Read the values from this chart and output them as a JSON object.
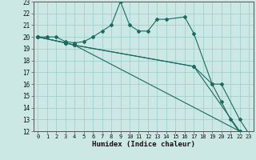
{
  "xlabel": "Humidex (Indice chaleur)",
  "xlim": [
    -0.5,
    23.5
  ],
  "ylim": [
    12,
    23
  ],
  "xticks": [
    0,
    1,
    2,
    3,
    4,
    5,
    6,
    7,
    8,
    9,
    10,
    11,
    12,
    13,
    14,
    15,
    16,
    17,
    18,
    19,
    20,
    21,
    22,
    23
  ],
  "yticks": [
    12,
    13,
    14,
    15,
    16,
    17,
    18,
    19,
    20,
    21,
    22,
    23
  ],
  "bg_color": "#cce8e4",
  "line_color": "#1a6b60",
  "grid_color": "#99ccc6",
  "lines": [
    {
      "x": [
        0,
        1,
        2,
        3,
        4,
        5,
        6,
        7,
        8,
        9,
        10,
        11,
        12,
        13,
        14,
        16,
        17,
        19,
        20,
        21,
        22,
        23
      ],
      "y": [
        20,
        20,
        20,
        19.6,
        19.5,
        19.6,
        20.0,
        20.5,
        21.0,
        23.0,
        21.0,
        20.5,
        20.5,
        21.5,
        21.5,
        21.7,
        20.3,
        16.0,
        14.5,
        13.0,
        11.9,
        11.8
      ]
    },
    {
      "x": [
        0,
        3,
        4,
        22,
        23
      ],
      "y": [
        20,
        19.5,
        19.3,
        12.0,
        11.8
      ]
    },
    {
      "x": [
        0,
        3,
        4,
        17,
        22,
        23
      ],
      "y": [
        20,
        19.5,
        19.3,
        17.5,
        12.0,
        11.8
      ]
    },
    {
      "x": [
        0,
        3,
        4,
        17,
        19,
        20,
        22,
        23
      ],
      "y": [
        20,
        19.5,
        19.3,
        17.5,
        16.0,
        16.0,
        13.0,
        11.8
      ]
    }
  ]
}
